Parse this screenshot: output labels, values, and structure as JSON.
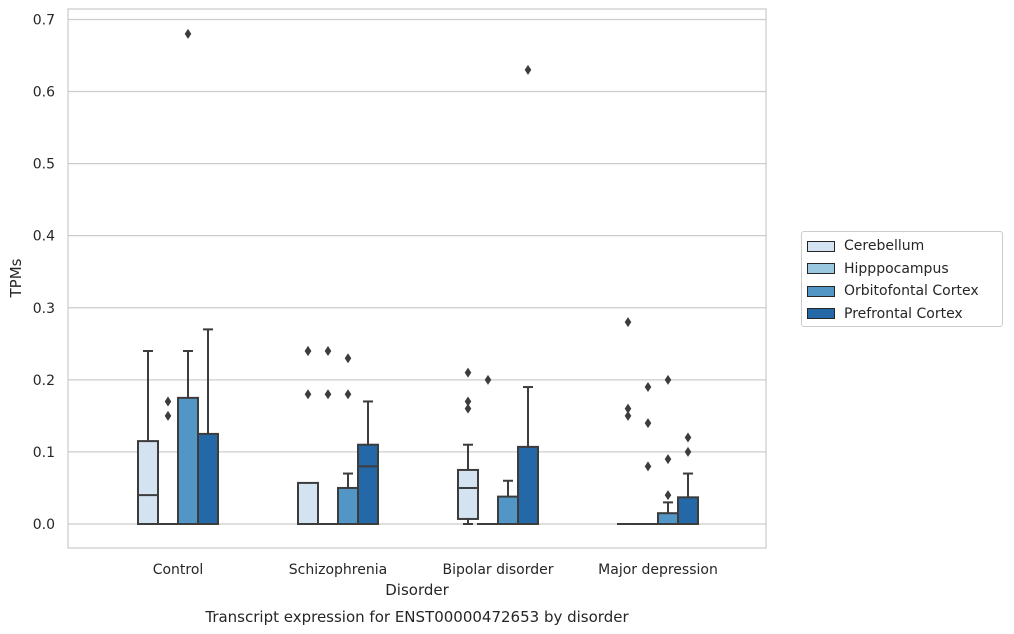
{
  "chart_data": {
    "type": "box",
    "title": "",
    "caption": "Transcript expression for ENST00000472653 by disorder",
    "xlabel": "Disorder",
    "ylabel": "TPMs",
    "ylim": [
      -0.033,
      0.715
    ],
    "yticks": [
      "0.0",
      "0.1",
      "0.2",
      "0.3",
      "0.4",
      "0.5",
      "0.6",
      "0.7"
    ],
    "ytick_values": [
      0.0,
      0.1,
      0.2,
      0.3,
      0.4,
      0.5,
      0.6,
      0.7
    ],
    "grid": true,
    "legend_position": "right, outside plot",
    "categories": [
      "Control",
      "Schizophrenia",
      "Bipolar disorder",
      "Major depression"
    ],
    "series": [
      {
        "name": "Cerebellum",
        "color": "#d4e3f2",
        "boxes": [
          {
            "q1": 0.0,
            "median": 0.04,
            "q3": 0.115,
            "whisker_low": 0.0,
            "whisker_high": 0.24,
            "outliers": []
          },
          {
            "q1": 0.0,
            "median": 0.0,
            "q3": 0.057,
            "whisker_low": 0.0,
            "whisker_high": 0.057,
            "outliers": [
              0.24,
              0.24,
              0.18
            ]
          },
          {
            "q1": 0.007,
            "median": 0.05,
            "q3": 0.075,
            "whisker_low": 0.0,
            "whisker_high": 0.11,
            "outliers": [
              0.21,
              0.17,
              0.16
            ]
          },
          {
            "q1": 0.0,
            "median": 0.0,
            "q3": 0.0,
            "whisker_low": 0.0,
            "whisker_high": 0.0,
            "outliers": [
              0.28,
              0.16,
              0.15
            ]
          }
        ]
      },
      {
        "name": "Hipppocampus",
        "color": "#9ac8e0",
        "boxes": [
          {
            "q1": 0.0,
            "median": 0.0,
            "q3": 0.0,
            "whisker_low": 0.0,
            "whisker_high": 0.0,
            "outliers": [
              0.17,
              0.15
            ]
          },
          {
            "q1": 0.0,
            "median": 0.0,
            "q3": 0.0,
            "whisker_low": 0.0,
            "whisker_high": 0.0,
            "outliers": [
              0.24,
              0.18
            ]
          },
          {
            "q1": 0.0,
            "median": 0.0,
            "q3": 0.0,
            "whisker_low": 0.0,
            "whisker_high": 0.0,
            "outliers": [
              0.2
            ]
          },
          {
            "q1": 0.0,
            "median": 0.0,
            "q3": 0.0,
            "whisker_low": 0.0,
            "whisker_high": 0.0,
            "outliers": [
              0.19,
              0.14,
              0.08
            ]
          }
        ]
      },
      {
        "name": "Orbitofontal Cortex",
        "color": "#5296c6",
        "boxes": [
          {
            "q1": 0.0,
            "median": 0.0,
            "q3": 0.175,
            "whisker_low": 0.0,
            "whisker_high": 0.24,
            "outliers": [
              0.68
            ]
          },
          {
            "q1": 0.0,
            "median": 0.0,
            "q3": 0.05,
            "whisker_low": 0.0,
            "whisker_high": 0.07,
            "outliers": [
              0.23,
              0.18
            ]
          },
          {
            "q1": 0.0,
            "median": 0.0,
            "q3": 0.038,
            "whisker_low": 0.0,
            "whisker_high": 0.06,
            "outliers": []
          },
          {
            "q1": 0.0,
            "median": 0.0,
            "q3": 0.015,
            "whisker_low": 0.0,
            "whisker_high": 0.03,
            "outliers": [
              0.2,
              0.09,
              0.04
            ]
          }
        ]
      },
      {
        "name": "Prefrontal Cortex",
        "color": "#2468a8",
        "boxes": [
          {
            "q1": 0.0,
            "median": 0.0,
            "q3": 0.125,
            "whisker_low": 0.0,
            "whisker_high": 0.27,
            "outliers": []
          },
          {
            "q1": 0.0,
            "median": 0.08,
            "q3": 0.11,
            "whisker_low": 0.0,
            "whisker_high": 0.17,
            "outliers": []
          },
          {
            "q1": 0.0,
            "median": 0.0,
            "q3": 0.107,
            "whisker_low": 0.0,
            "whisker_high": 0.19,
            "outliers": [
              0.63
            ]
          },
          {
            "q1": 0.0,
            "median": 0.0,
            "q3": 0.037,
            "whisker_low": 0.0,
            "whisker_high": 0.07,
            "outliers": [
              0.12,
              0.1
            ]
          }
        ]
      }
    ]
  }
}
